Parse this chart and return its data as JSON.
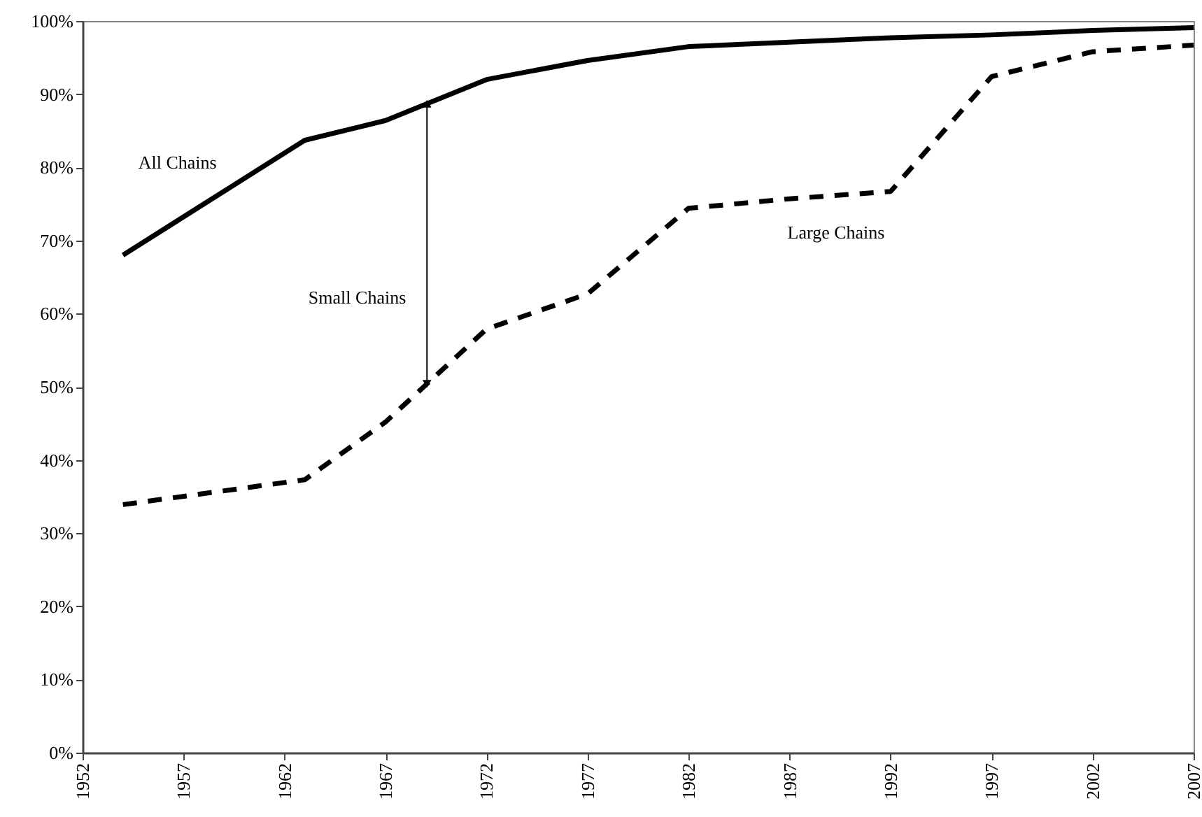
{
  "chart_data": {
    "type": "line",
    "x": [
      1954,
      1963,
      1967,
      1972,
      1977,
      1982,
      1987,
      1992,
      1997,
      2002,
      2007
    ],
    "series": [
      {
        "name": "All Chains",
        "color": "#000000",
        "line_style": "solid",
        "values": [
          68,
          83.7,
          86.4,
          92.0,
          94.6,
          96.5,
          97.1,
          97.7,
          98.1,
          98.7,
          99.1
        ]
      },
      {
        "name": "Large Chains",
        "color": "#000000",
        "line_style": "dashed",
        "values": [
          33.9,
          37.3,
          45.2,
          57.9,
          62.7,
          74.4,
          75.7,
          76.7,
          92.4,
          95.8,
          96.7
        ]
      }
    ],
    "xlim": [
      1952,
      2007
    ],
    "xticks": [
      1952,
      1957,
      1962,
      1967,
      1972,
      1977,
      1982,
      1987,
      1992,
      1997,
      2002,
      2007
    ],
    "ylim": [
      0,
      100
    ],
    "yticks": [
      {
        "value": 0,
        "label": "0%"
      },
      {
        "value": 10,
        "label": "10%"
      },
      {
        "value": 20,
        "label": "20%"
      },
      {
        "value": 30,
        "label": "30%"
      },
      {
        "value": 40,
        "label": "40%"
      },
      {
        "value": 50,
        "label": "50%"
      },
      {
        "value": 60,
        "label": "60%"
      },
      {
        "value": 70,
        "label": "70%"
      },
      {
        "value": 80,
        "label": "80%"
      },
      {
        "value": 90,
        "label": "90%"
      },
      {
        "value": 100,
        "label": "100%"
      }
    ],
    "annotations": [
      "Small Chains"
    ],
    "grid": false,
    "marker": "none"
  }
}
